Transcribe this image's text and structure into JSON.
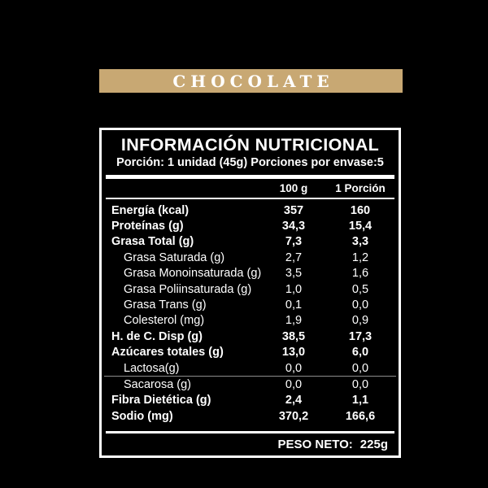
{
  "banner": {
    "label": "CHOCOLATE",
    "background_color": "#C8A873",
    "text_color": "#FFFFFF"
  },
  "table": {
    "title": "INFORMACIÓN NUTRICIONAL",
    "subtitle": "Porción: 1 unidad (45g) Porciones por envase:5",
    "columns": [
      "100 g",
      "1 Porción"
    ],
    "rows": [
      {
        "label": "Energía (kcal)",
        "per_100g": "357",
        "per_porcion": "160",
        "bold": true,
        "indent": false
      },
      {
        "label": "Proteínas (g)",
        "per_100g": "34,3",
        "per_porcion": "15,4",
        "bold": true,
        "indent": false
      },
      {
        "label": "Grasa Total (g)",
        "per_100g": "7,3",
        "per_porcion": "3,3",
        "bold": true,
        "indent": false
      },
      {
        "label": "Grasa Saturada (g)",
        "per_100g": "2,7",
        "per_porcion": "1,2",
        "bold": false,
        "indent": true
      },
      {
        "label": "Grasa Monoinsaturada (g)",
        "per_100g": "3,5",
        "per_porcion": "1,6",
        "bold": false,
        "indent": true
      },
      {
        "label": "Grasa Poliinsaturada (g)",
        "per_100g": "1,0",
        "per_porcion": "0,5",
        "bold": false,
        "indent": true
      },
      {
        "label": "Grasa Trans (g)",
        "per_100g": "0,1",
        "per_porcion": "0,0",
        "bold": false,
        "indent": true
      },
      {
        "label": "Colesterol (mg)",
        "per_100g": "1,9",
        "per_porcion": "0,9",
        "bold": false,
        "indent": true
      },
      {
        "label": "H. de C. Disp (g)",
        "per_100g": "38,5",
        "per_porcion": "17,3",
        "bold": true,
        "indent": false
      },
      {
        "label": "Azúcares totales (g)",
        "per_100g": "13,0",
        "per_porcion": "6,0",
        "bold": true,
        "indent": false
      },
      {
        "label": "Lactosa(g)",
        "per_100g": "0,0",
        "per_porcion": "0,0",
        "bold": false,
        "indent": true,
        "separator_below": true
      },
      {
        "label": "Sacarosa (g)",
        "per_100g": "0,0",
        "per_porcion": "0,0",
        "bold": false,
        "indent": true
      },
      {
        "label": "Fibra Dietética (g)",
        "per_100g": "2,4",
        "per_porcion": "1,1",
        "bold": true,
        "indent": false
      },
      {
        "label": "Sodio (mg)",
        "per_100g": "370,2",
        "per_porcion": "166,6",
        "bold": true,
        "indent": false
      }
    ],
    "footer": {
      "label": "PESO NETO:",
      "value": "225g"
    }
  },
  "colors": {
    "background": "#000000",
    "panel_border": "#FFFFFF",
    "text": "#FFFFFF"
  }
}
